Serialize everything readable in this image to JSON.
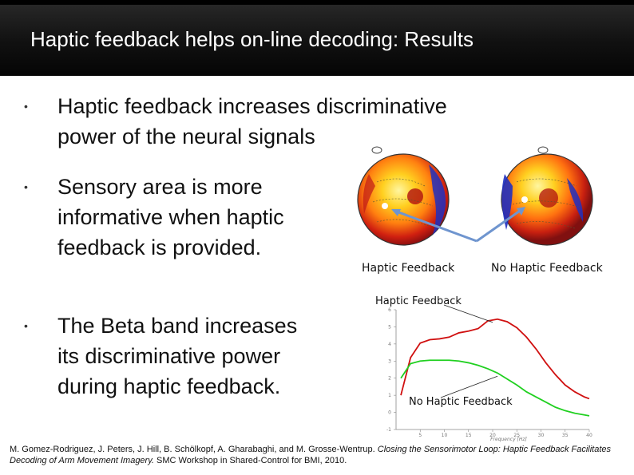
{
  "slide": {
    "title": "Haptic feedback helps on-line decoding: Results",
    "bullets": [
      {
        "line1": "Haptic feedback increases discriminative",
        "line2": "power of the neural signals"
      },
      {
        "line1": "Sensory area is more",
        "line2": "informative when haptic",
        "line3": "feedback is provided."
      },
      {
        "line1": "The Beta band increases",
        "line2": "its discriminative power",
        "line3": "during haptic feedback."
      }
    ],
    "bullet_glyph": "•"
  },
  "topomaps": {
    "label_left": "Haptic Feedback",
    "label_right": "No Haptic Feedback"
  },
  "chart_data": {
    "type": "line",
    "x": [
      1,
      3,
      5,
      7,
      9,
      11,
      13,
      15,
      17,
      19,
      21,
      23,
      25,
      27,
      29,
      31,
      33,
      35,
      37,
      39,
      40
    ],
    "series": [
      {
        "name": "Haptic Feedback",
        "color": "#d01010",
        "values": [
          1.0,
          3.2,
          4.05,
          4.25,
          4.3,
          4.4,
          4.65,
          4.75,
          4.9,
          5.35,
          5.45,
          5.3,
          4.95,
          4.4,
          3.7,
          2.9,
          2.2,
          1.6,
          1.2,
          0.9,
          0.8
        ]
      },
      {
        "name": "No Haptic Feedback",
        "color": "#20d020",
        "values": [
          2.0,
          2.85,
          3.0,
          3.05,
          3.05,
          3.05,
          3.0,
          2.9,
          2.75,
          2.55,
          2.3,
          1.95,
          1.6,
          1.2,
          0.9,
          0.6,
          0.3,
          0.1,
          -0.05,
          -0.15,
          -0.2
        ]
      }
    ],
    "xlim": [
      0,
      40
    ],
    "ylim": [
      -1,
      6
    ],
    "xticks": [
      "5",
      "10",
      "15",
      "20",
      "25",
      "30",
      "35",
      "40"
    ],
    "yticks": [
      "-1",
      "0",
      "1",
      "2",
      "3",
      "4",
      "5",
      "6"
    ],
    "xlabel": "Frequency [Hz]",
    "annotations": [
      "Haptic Feedback",
      "No Haptic Feedback"
    ]
  },
  "citation": {
    "authors": "M. Gomez-Rodriguez, J. Peters, J. Hill, B. Schölkopf, A. Gharabaghi, and M. Grosse-Wentrup. ",
    "paper": "Closing the Sensorimotor Loop: Haptic Feedback Facilitates Decoding of Arm Movement Imagery.",
    "venue": " SMC Workshop in Shared-Control for BMI, 2010."
  }
}
